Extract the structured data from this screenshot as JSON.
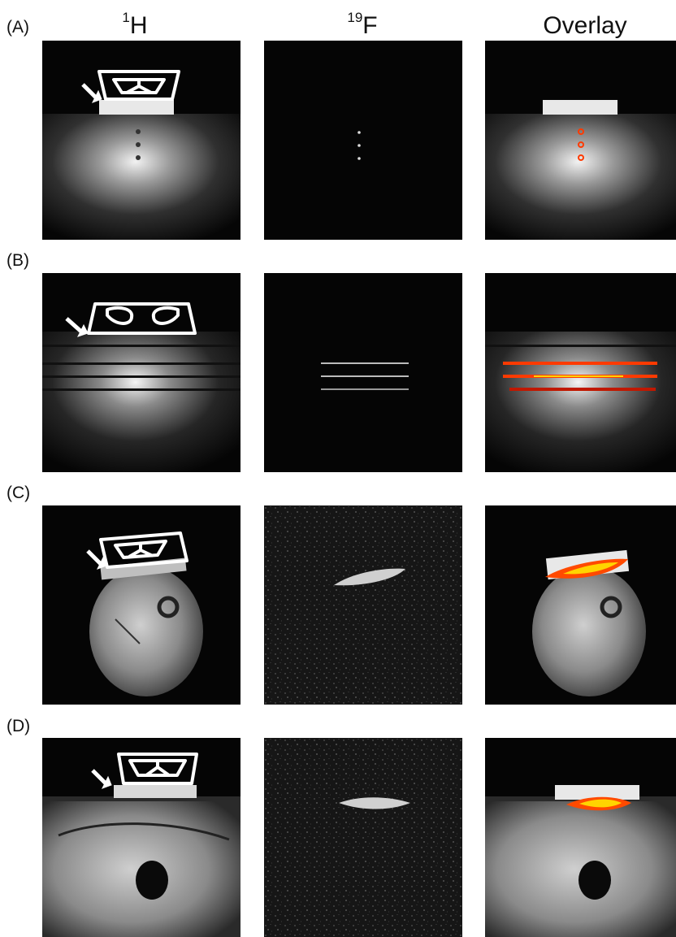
{
  "columns": [
    {
      "sup": "1",
      "text": "H"
    },
    {
      "sup": "19",
      "text": "F"
    },
    {
      "sup": "",
      "text": "Overlay"
    }
  ],
  "rows": [
    {
      "label": "(A)"
    },
    {
      "label": "(B)"
    },
    {
      "label": "(C)"
    },
    {
      "label": "(D)"
    }
  ],
  "colors": {
    "background": "#ffffff",
    "panel": "#050505",
    "overlay_hot": "#ff3a00",
    "overlay_warm": "#ffd400"
  }
}
